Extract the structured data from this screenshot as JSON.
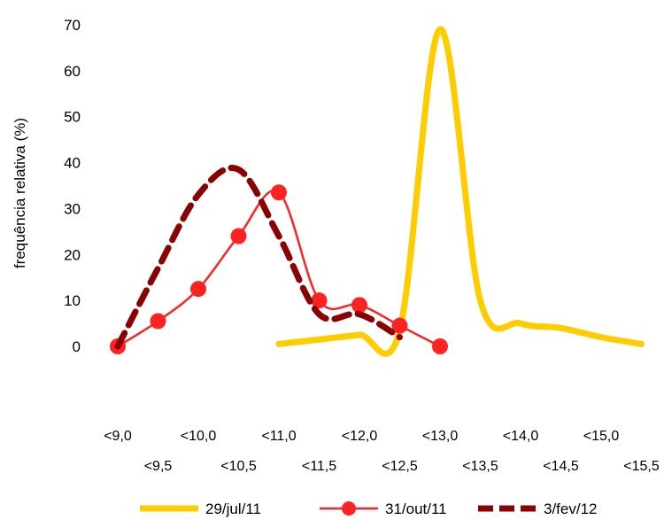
{
  "chart_data": {
    "type": "line",
    "ylabel": "frequência relativa (%)",
    "xlabel": "",
    "ylim": [
      0,
      70
    ],
    "yticks": [
      0,
      10,
      20,
      30,
      40,
      50,
      60,
      70
    ],
    "categories": [
      "<9,0",
      "<9,5",
      "<10,0",
      "<10,5",
      "<11,0",
      "<11,5",
      "<12,0",
      "<12,5",
      "<13,0",
      "<13,5",
      "<14,0",
      "<14,5",
      "<15,0",
      "<15,5"
    ],
    "grid": false,
    "legend_position": "bottom",
    "series": [
      {
        "name": "29/jul/11",
        "color": "#FFCC00",
        "style": "solid-thick",
        "marker": "none",
        "values": [
          null,
          null,
          null,
          null,
          0.5,
          1.5,
          2.5,
          3.5,
          69,
          10,
          5,
          4,
          2,
          0.5
        ]
      },
      {
        "name": "31/out/11",
        "color": "#FF2222",
        "style": "solid",
        "marker": "circle",
        "values": [
          0,
          5.5,
          12.5,
          24,
          33.5,
          10,
          9,
          4.5,
          0,
          null,
          null,
          null,
          null,
          null
        ]
      },
      {
        "name": "3/fev/12",
        "color": "#8B0000",
        "style": "dashed-thick",
        "marker": "none",
        "values": [
          0,
          17,
          33,
          38.5,
          24,
          7,
          7,
          2,
          null,
          null,
          null,
          null,
          null,
          null
        ]
      }
    ]
  }
}
